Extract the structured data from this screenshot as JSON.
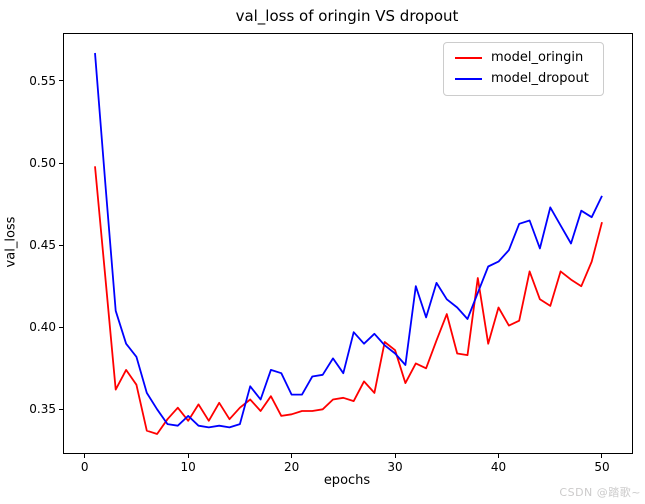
{
  "chart_data": {
    "type": "line",
    "title": "val_loss of oringin VS dropout",
    "xlabel": "epochs",
    "ylabel": "val_loss",
    "legend_position": "upper right",
    "grid": false,
    "xticks": [
      0,
      10,
      20,
      30,
      40,
      50
    ],
    "yticks": [
      0.35,
      0.4,
      0.45,
      0.5,
      0.55
    ],
    "xlim": [
      -2.0,
      52.9
    ],
    "ylim": [
      0.3234,
      0.5786
    ],
    "x": [
      1,
      2,
      3,
      4,
      5,
      6,
      7,
      8,
      9,
      10,
      11,
      12,
      13,
      14,
      15,
      16,
      17,
      18,
      19,
      20,
      21,
      22,
      23,
      24,
      25,
      26,
      27,
      28,
      29,
      30,
      31,
      32,
      33,
      34,
      35,
      36,
      37,
      38,
      39,
      40,
      41,
      42,
      43,
      44,
      45,
      46,
      47,
      48,
      49,
      50
    ],
    "series": [
      {
        "name": "model_oringin",
        "color": "#ff0000",
        "values": [
          0.498,
          0.43,
          0.362,
          0.374,
          0.365,
          0.337,
          0.335,
          0.344,
          0.351,
          0.343,
          0.353,
          0.343,
          0.354,
          0.344,
          0.351,
          0.356,
          0.349,
          0.358,
          0.346,
          0.347,
          0.349,
          0.349,
          0.35,
          0.356,
          0.357,
          0.355,
          0.367,
          0.36,
          0.391,
          0.386,
          0.366,
          0.378,
          0.375,
          0.392,
          0.408,
          0.384,
          0.383,
          0.43,
          0.39,
          0.412,
          0.401,
          0.404,
          0.434,
          0.417,
          0.413,
          0.434,
          0.429,
          0.425,
          0.44,
          0.464
        ]
      },
      {
        "name": "model_dropout",
        "color": "#0000ff",
        "values": [
          0.567,
          0.487,
          0.41,
          0.39,
          0.382,
          0.36,
          0.35,
          0.341,
          0.34,
          0.346,
          0.34,
          0.339,
          0.34,
          0.339,
          0.341,
          0.364,
          0.356,
          0.374,
          0.372,
          0.359,
          0.359,
          0.37,
          0.371,
          0.381,
          0.372,
          0.397,
          0.39,
          0.396,
          0.389,
          0.384,
          0.377,
          0.425,
          0.406,
          0.427,
          0.417,
          0.412,
          0.405,
          0.421,
          0.437,
          0.44,
          0.447,
          0.463,
          0.465,
          0.448,
          0.473,
          0.462,
          0.451,
          0.471,
          0.467,
          0.48
        ]
      }
    ]
  },
  "watermark": {
    "text": "CSDN @踏歌~"
  }
}
